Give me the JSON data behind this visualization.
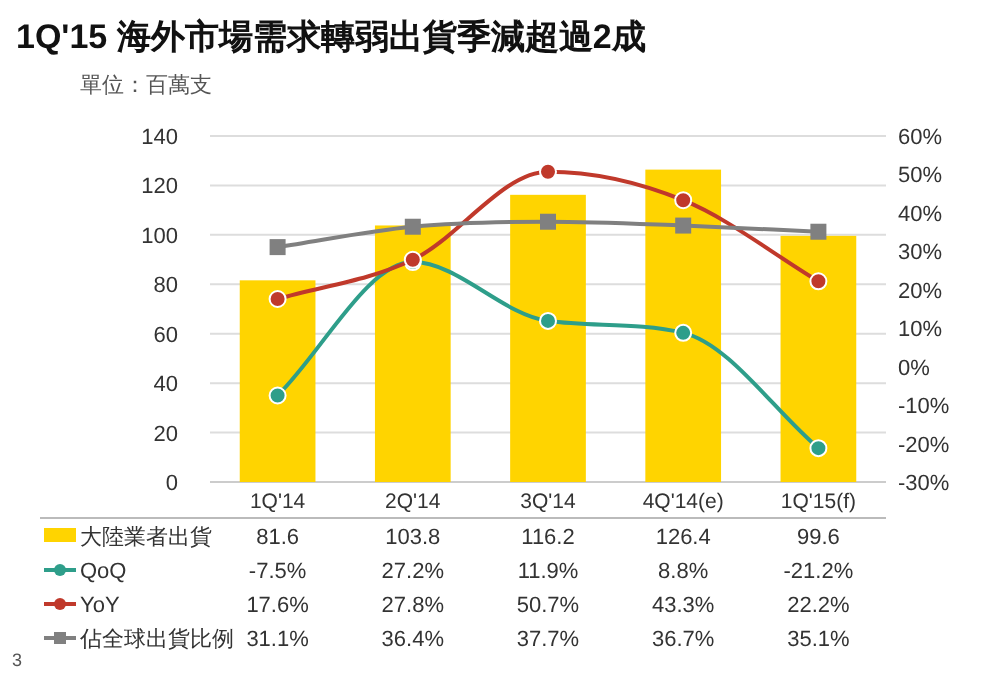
{
  "chart_data": {
    "type": "bar",
    "title": "1Q'15 海外市場需求轉弱出貨季減超過2成",
    "annotations": [
      "單位：百萬支",
      "3"
    ],
    "categories": [
      "1Q'14",
      "2Q'14",
      "3Q'14",
      "4Q'14(e)",
      "1Q'15(f)"
    ],
    "series": [
      {
        "name": "大陸業者出貨",
        "color": "#ffd400",
        "values": [
          81.6,
          103.8,
          116.2,
          126.4,
          99.6
        ],
        "value_labels": [
          "81.6",
          "103.8",
          "116.2",
          "126.4",
          "99.6"
        ]
      },
      {
        "name": "QoQ",
        "type": "line",
        "axis": "y2",
        "color": "#2e9e8a",
        "marker": "circle",
        "values": [
          -7.5,
          27.2,
          11.9,
          8.8,
          -21.2
        ],
        "value_labels": [
          "-7.5%",
          "27.2%",
          "11.9%",
          "8.8%",
          "-21.2%"
        ]
      },
      {
        "name": "YoY",
        "type": "line",
        "axis": "y2",
        "color": "#c0392b",
        "marker": "circle",
        "values": [
          17.6,
          27.8,
          50.7,
          43.3,
          22.2
        ],
        "value_labels": [
          "17.6%",
          "27.8%",
          "50.7%",
          "43.3%",
          "22.2%"
        ]
      },
      {
        "name": "佔全球出貨比例",
        "type": "line",
        "axis": "y2",
        "color": "#808080",
        "marker": "square",
        "values": [
          31.1,
          36.4,
          37.7,
          36.7,
          35.1
        ],
        "value_labels": [
          "31.1%",
          "36.4%",
          "37.7%",
          "36.7%",
          "35.1%"
        ]
      }
    ],
    "ylim": [
      0,
      140
    ],
    "yticks": [
      0,
      20,
      40,
      60,
      80,
      100,
      120,
      140
    ],
    "y2lim": [
      -30,
      60
    ],
    "y2ticks": [
      {
        "value": -30,
        "label": "-30%"
      },
      {
        "value": -20,
        "label": "-20%"
      },
      {
        "value": -10,
        "label": "-10%"
      },
      {
        "value": 0,
        "label": "0%"
      },
      {
        "value": 10,
        "label": "10%"
      },
      {
        "value": 20,
        "label": "20%"
      },
      {
        "value": 30,
        "label": "30%"
      },
      {
        "value": 40,
        "label": "40%"
      },
      {
        "value": 50,
        "label": "50%"
      },
      {
        "value": 60,
        "label": "60%"
      }
    ],
    "grid": "y",
    "legend": "bottom"
  }
}
